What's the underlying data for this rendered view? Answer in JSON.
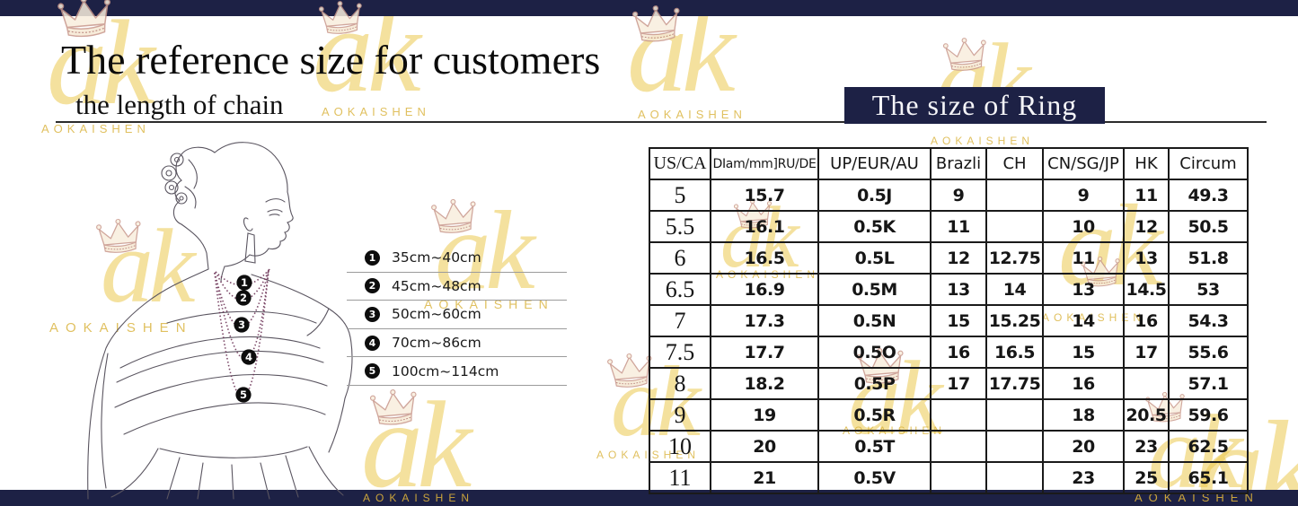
{
  "page": {
    "title_main": "The reference size for customers",
    "title_sub": "the length of chain"
  },
  "ring_section": {
    "title": "The size of Ring"
  },
  "chain_legend": {
    "items": [
      {
        "num": "1",
        "range": "35cm~40cm"
      },
      {
        "num": "2",
        "range": "45cm~48cm"
      },
      {
        "num": "3",
        "range": "50cm~60cm"
      },
      {
        "num": "4",
        "range": "70cm~86cm"
      },
      {
        "num": "5",
        "range": "100cm~114cm"
      }
    ]
  },
  "ring_table": {
    "columns": [
      "US/CA",
      "DIam/mm]RU/DE",
      "UP/EUR/AU",
      "Brazli",
      "CH",
      "CN/SG/JP",
      "HK",
      "Circum"
    ],
    "rows": [
      [
        "5",
        "15.7",
        "0.5J",
        "9",
        "",
        "9",
        "11",
        "49.3"
      ],
      [
        "5.5",
        "16.1",
        "0.5K",
        "11",
        "",
        "10",
        "12",
        "50.5"
      ],
      [
        "6",
        "16.5",
        "0.5L",
        "12",
        "12.75",
        "11",
        "13",
        "51.8"
      ],
      [
        "6.5",
        "16.9",
        "0.5M",
        "13",
        "14",
        "13",
        "14.5",
        "53"
      ],
      [
        "7",
        "17.3",
        "0.5N",
        "15",
        "15.25",
        "14",
        "16",
        "54.3"
      ],
      [
        "7.5",
        "17.7",
        "0.5O",
        "16",
        "16.5",
        "15",
        "17",
        "55.6"
      ],
      [
        "8",
        "18.2",
        "0.5P",
        "17",
        "17.75",
        "16",
        "",
        "57.1"
      ],
      [
        "9",
        "19",
        "0.5R",
        "",
        "",
        "18",
        "20.5",
        "59.6"
      ],
      [
        "10",
        "20",
        "0.5T",
        "",
        "",
        "20",
        "23",
        "62.5"
      ],
      [
        "11",
        "21",
        "0.5V",
        "",
        "",
        "23",
        "25",
        "65.1"
      ]
    ]
  },
  "watermark": {
    "ak": "ak",
    "brand": "AOKAISHEN",
    "crown_icon": "crown-icon"
  },
  "colors": {
    "navy": "#1d2145",
    "gold": "#ecc94f",
    "brand_gold": "#d9b138",
    "table_border": "#1a1a1a",
    "necklace": "#6d3457"
  }
}
